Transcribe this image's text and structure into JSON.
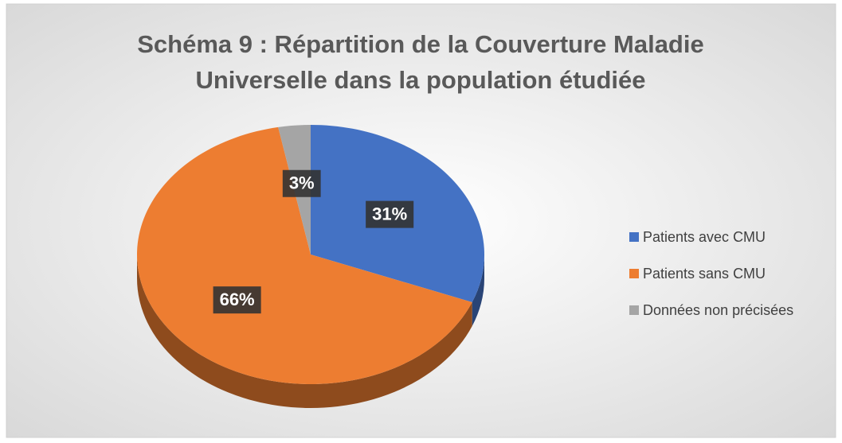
{
  "chart_data": {
    "type": "pie",
    "title": [
      "Schéma 9 : Répartition de la Couverture Maladie",
      "Universelle dans la population étudiée"
    ],
    "categories": [
      "Patients avec CMU",
      "Patients sans CMU",
      "Données non précisées"
    ],
    "values": [
      31,
      66,
      3
    ],
    "value_labels": [
      "31%",
      "66%",
      "3%"
    ],
    "colors": [
      "#4472c4",
      "#ed7d31",
      "#a5a5a5"
    ],
    "legend": "right"
  }
}
